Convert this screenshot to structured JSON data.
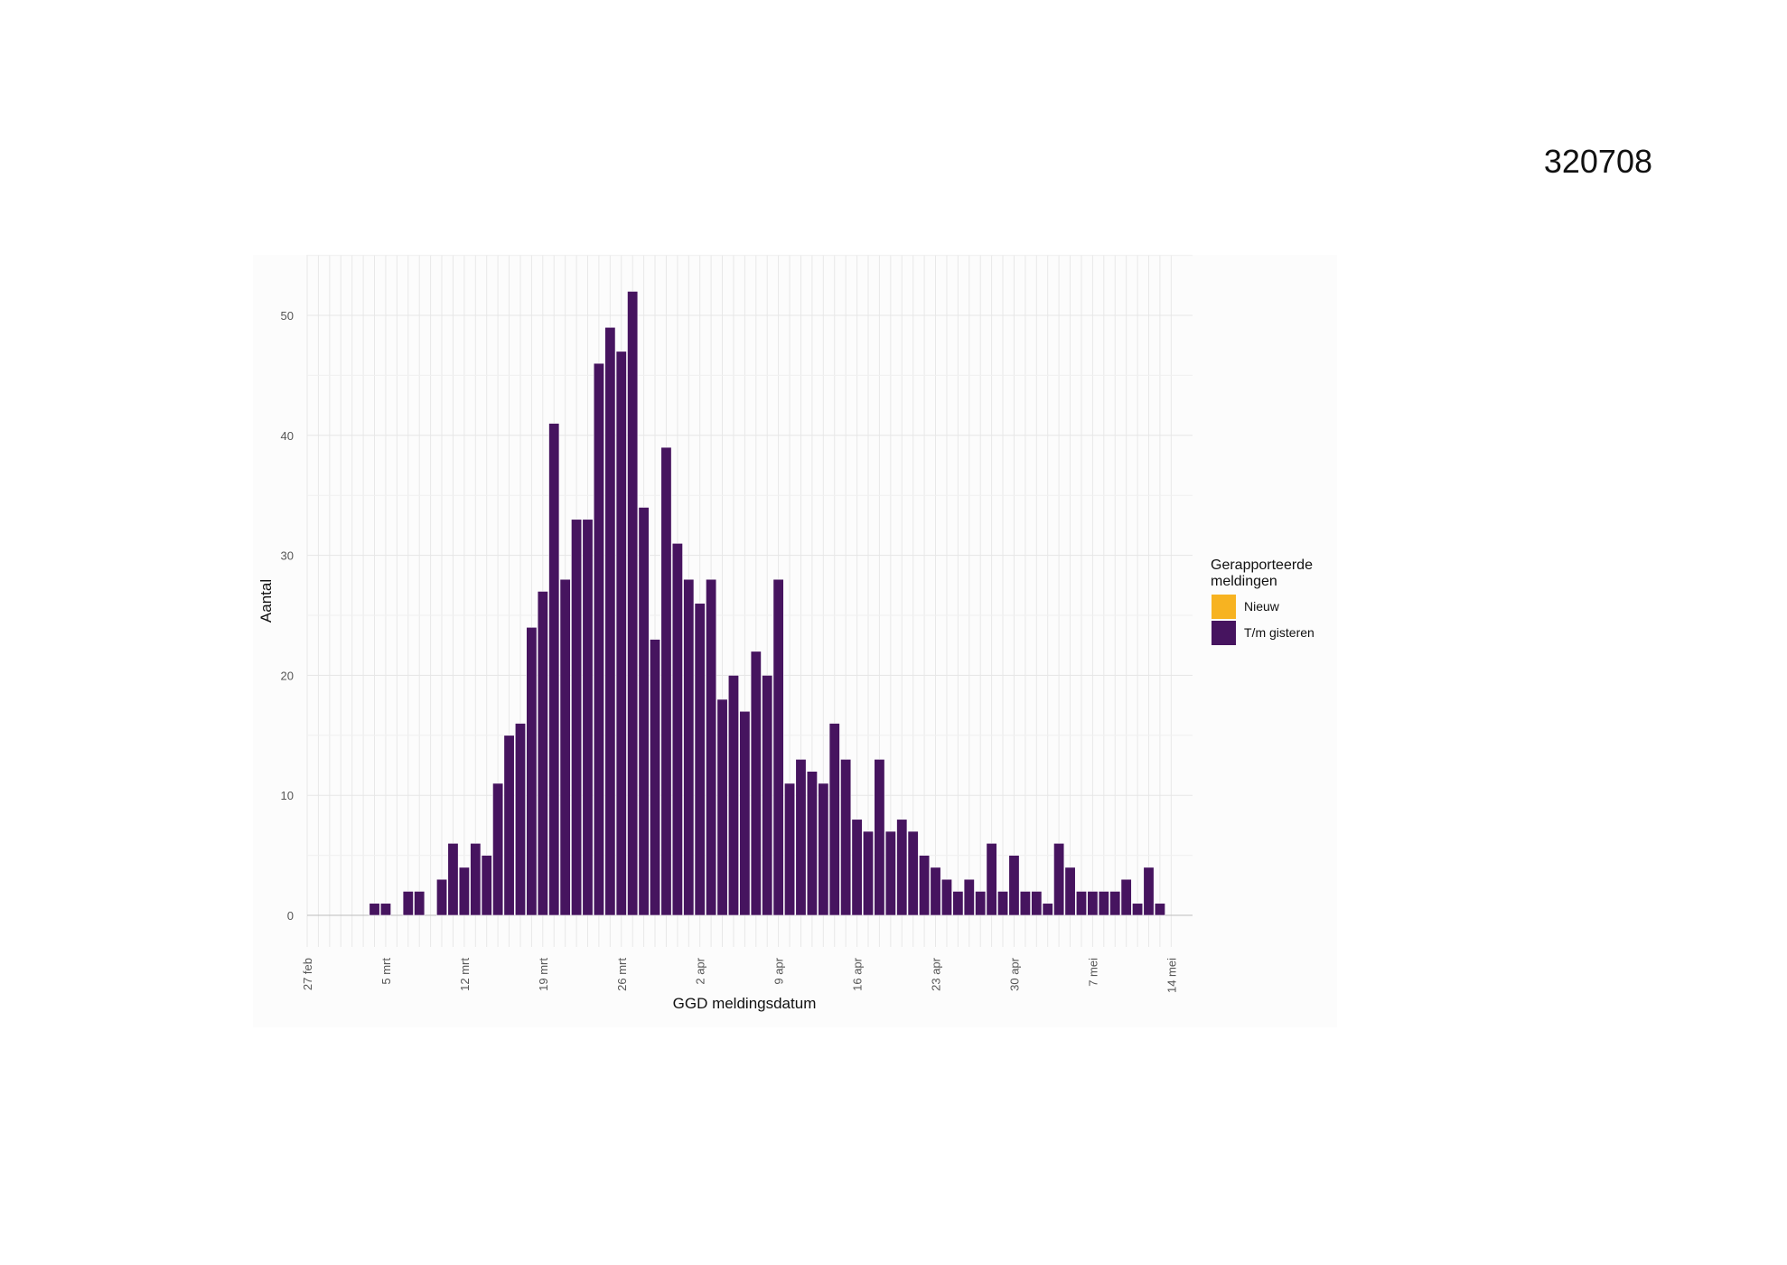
{
  "document_id": "320708",
  "chart_data": {
    "type": "bar",
    "xlabel": "GGD meldingsdatum",
    "ylabel": "Aantal",
    "ylim": [
      0,
      54
    ],
    "y_ticks": [
      0,
      10,
      20,
      30,
      40,
      50
    ],
    "x_tick_labels": [
      "27 feb",
      "5 mrt",
      "12 mrt",
      "19 mrt",
      "26 mrt",
      "2 apr",
      "9 apr",
      "16 apr",
      "23 apr",
      "30 apr",
      "7 mei",
      "14 mei"
    ],
    "grid": true,
    "legend": {
      "title_lines": [
        "Gerapporteerde",
        "meldingen"
      ],
      "placement": "right",
      "items": [
        {
          "label": "Nieuw",
          "color": "#F7B321"
        },
        {
          "label": "T/m gisteren",
          "color": "#46145F"
        }
      ]
    },
    "colors": {
      "nieuw": "#F7B321",
      "tm_gisteren": "#46145F"
    },
    "series": [
      {
        "name": "Nieuw",
        "values": []
      },
      {
        "name": "T/m gisteren",
        "values": [
          0,
          0,
          0,
          0,
          0,
          0,
          1,
          1,
          0,
          2,
          2,
          0,
          3,
          6,
          4,
          6,
          5,
          11,
          15,
          16,
          24,
          27,
          41,
          28,
          33,
          33,
          46,
          49,
          47,
          52,
          34,
          23,
          39,
          31,
          28,
          26,
          28,
          18,
          20,
          17,
          22,
          20,
          28,
          11,
          13,
          12,
          11,
          16,
          13,
          8,
          7,
          13,
          7,
          8,
          7,
          5,
          4,
          3,
          2,
          3,
          2,
          6,
          2,
          5,
          2,
          2,
          1,
          6,
          4,
          2,
          2,
          2,
          2,
          3,
          1,
          4,
          1
        ]
      }
    ]
  }
}
